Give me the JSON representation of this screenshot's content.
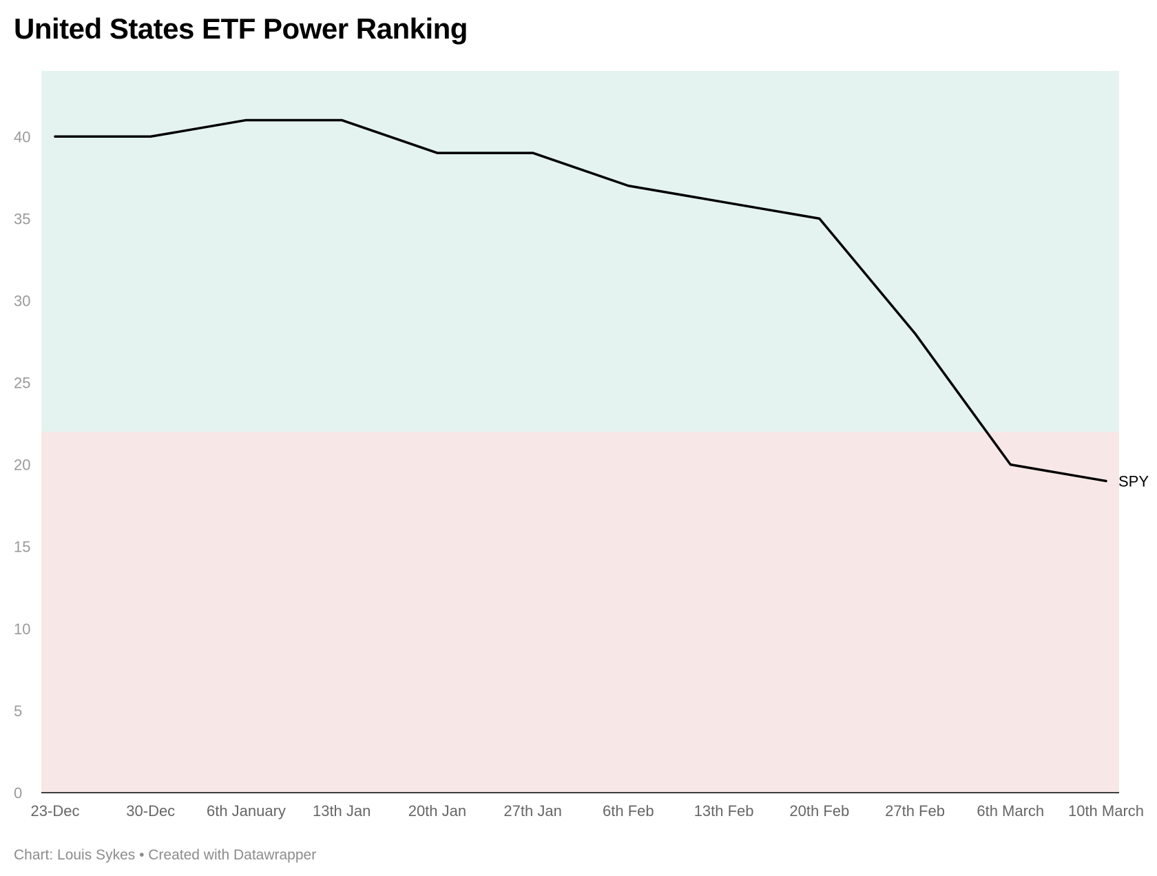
{
  "chart_data": {
    "type": "line",
    "title": "United States ETF Power Ranking",
    "xlabel": "",
    "ylabel": "",
    "categories": [
      "23-Dec",
      "30-Dec",
      "6th January",
      "13th Jan",
      "20th Jan",
      "27th Jan",
      "6th Feb",
      "13th Feb",
      "20th Feb",
      "27th Feb",
      "6th March",
      "10th March"
    ],
    "series": [
      {
        "name": "SPY",
        "values": [
          40,
          40,
          41,
          41,
          39,
          39,
          37,
          36,
          35,
          28,
          20,
          19
        ],
        "color": "#000000"
      }
    ],
    "ylim": [
      0,
      44
    ],
    "yticks": [
      0,
      5,
      10,
      15,
      20,
      25,
      30,
      35,
      40
    ],
    "bands": [
      {
        "from": 22,
        "to": 44,
        "color": "#e4f3f0"
      },
      {
        "from": 0,
        "to": 22,
        "color": "#f8e7e7"
      }
    ],
    "grid": false,
    "legend": "none"
  },
  "footer": "Chart: Louis Sykes • Created with Datawrapper"
}
